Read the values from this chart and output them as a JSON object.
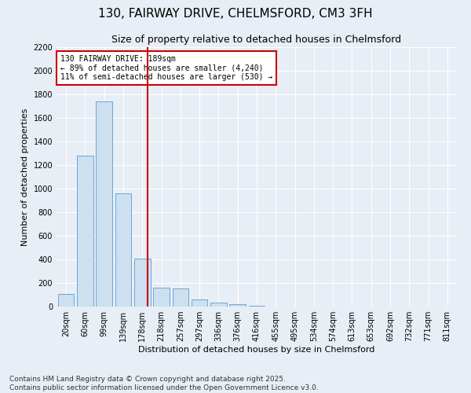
{
  "title1": "130, FAIRWAY DRIVE, CHELMSFORD, CM3 3FH",
  "title2": "Size of property relative to detached houses in Chelmsford",
  "xlabel": "Distribution of detached houses by size in Chelmsford",
  "ylabel": "Number of detached properties",
  "categories": [
    "20sqm",
    "60sqm",
    "99sqm",
    "139sqm",
    "178sqm",
    "218sqm",
    "257sqm",
    "297sqm",
    "336sqm",
    "376sqm",
    "416sqm",
    "455sqm",
    "495sqm",
    "534sqm",
    "574sqm",
    "613sqm",
    "653sqm",
    "692sqm",
    "732sqm",
    "771sqm",
    "811sqm"
  ],
  "values": [
    110,
    1280,
    1740,
    960,
    410,
    160,
    155,
    60,
    35,
    20,
    10,
    0,
    0,
    0,
    0,
    0,
    0,
    0,
    0,
    0,
    0
  ],
  "bar_color": "#cce0f0",
  "bar_edge_color": "#5b9bd5",
  "vline_color": "#cc0000",
  "annotation_line1": "130 FAIRWAY DRIVE: 189sqm",
  "annotation_line2": "← 89% of detached houses are smaller (4,240)",
  "annotation_line3": "11% of semi-detached houses are larger (530) →",
  "annotation_box_color": "#ffffff",
  "annotation_box_edge": "#cc0000",
  "ylim": [
    0,
    2200
  ],
  "yticks": [
    0,
    200,
    400,
    600,
    800,
    1000,
    1200,
    1400,
    1600,
    1800,
    2000,
    2200
  ],
  "bg_color": "#e8eef5",
  "plot_bg": "#e8eef5",
  "footer1": "Contains HM Land Registry data © Crown copyright and database right 2025.",
  "footer2": "Contains public sector information licensed under the Open Government Licence v3.0.",
  "title1_fontsize": 11,
  "title2_fontsize": 9,
  "xlabel_fontsize": 8,
  "ylabel_fontsize": 8,
  "tick_fontsize": 7,
  "footer_fontsize": 6.5,
  "annot_fontsize": 7
}
